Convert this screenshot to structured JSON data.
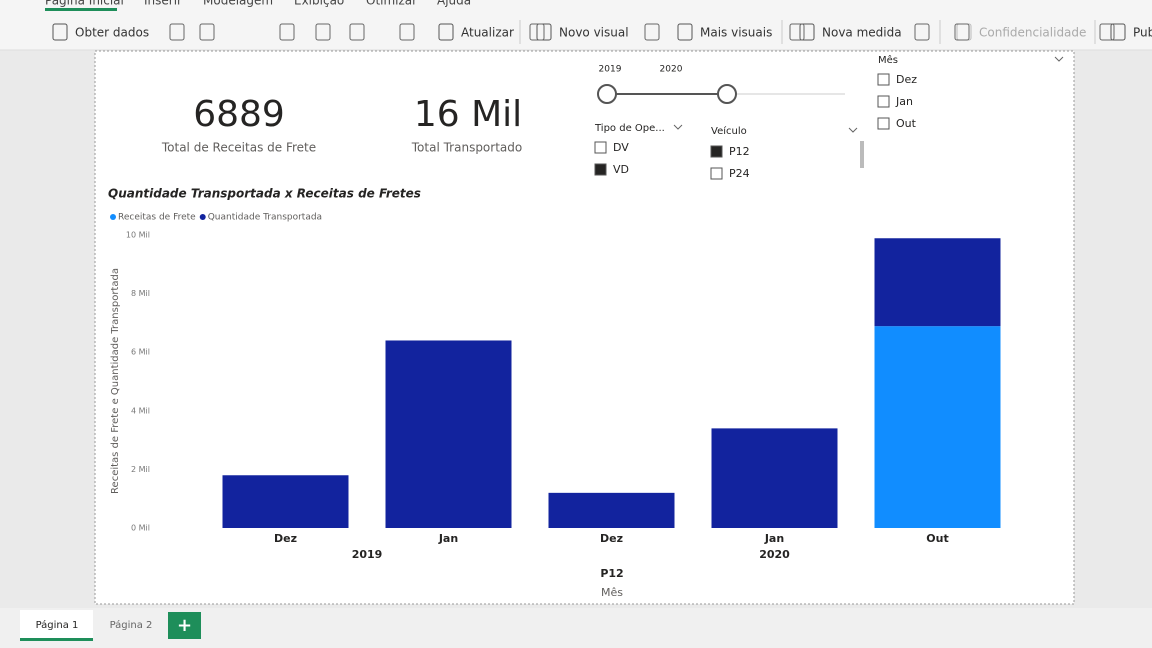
{
  "ribbon": {
    "tabs": [
      "Página Inicial",
      "Inserir",
      "Modelagem",
      "Exibição",
      "Otimizar",
      "Ajuda"
    ],
    "buttons": [
      "Obter dados",
      "Atualizar",
      "Novo visual",
      "Mais visuais",
      "Nova medida",
      "Confidencialidade",
      "Pub"
    ]
  },
  "cards": [
    {
      "value": "6889",
      "label": "Total de Receitas de Frete"
    },
    {
      "value": "16 Mil",
      "label": "Total Transportado"
    }
  ],
  "slicers": {
    "year": {
      "labels": [
        "2019",
        "2020"
      ]
    },
    "tipo": {
      "title": "Tipo de Ope...",
      "items": [
        {
          "label": "DV",
          "checked": false
        },
        {
          "label": "VD",
          "checked": true
        }
      ]
    },
    "veiculo": {
      "title": "Veículo",
      "items": [
        {
          "label": "P12",
          "checked": true
        },
        {
          "label": "P24",
          "checked": false
        }
      ]
    },
    "mes": {
      "title": "Mês",
      "items": [
        {
          "label": "Dez",
          "checked": false
        },
        {
          "label": "Jan",
          "checked": false
        },
        {
          "label": "Out",
          "checked": false
        }
      ]
    }
  },
  "chart_data": {
    "type": "bar",
    "stacked": true,
    "title": "Quantidade Transportada x Receitas de Fretes",
    "categories": [
      "Dez",
      "Jan",
      "Dez",
      "Jan",
      "Out"
    ],
    "years": [
      "2019",
      "2019",
      "2020",
      "2020",
      "2020"
    ],
    "group": "P12",
    "x_label": "Mês",
    "y_label": "Receitas de Frete e Quantidade Transportada",
    "series": [
      {
        "name": "Receitas de Frete",
        "color": "#118dff",
        "values": [
          null,
          null,
          null,
          null,
          6889
        ]
      },
      {
        "name": "Quantidade Transportada",
        "color": "#12239e",
        "values": [
          1800,
          6400,
          1200,
          3400,
          3000
        ]
      }
    ],
    "ylim": [
      0,
      10000
    ],
    "yticks": [
      {
        "value": 0,
        "label": "0 Mil"
      },
      {
        "value": 2000,
        "label": "2 Mil"
      },
      {
        "value": 4000,
        "label": "4 Mil"
      },
      {
        "value": 6000,
        "label": "6 Mil"
      },
      {
        "value": 8000,
        "label": "8 Mil"
      },
      {
        "value": 10000,
        "label": "10 Mil"
      }
    ]
  },
  "pages": [
    "Página 1",
    "Página 2"
  ]
}
